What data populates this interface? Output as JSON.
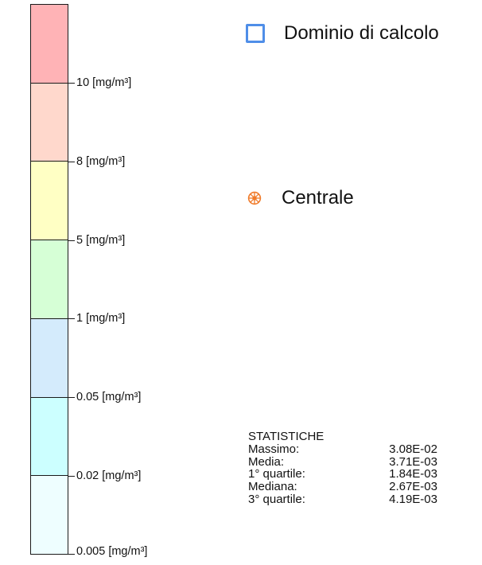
{
  "scale": {
    "colors": [
      "#ffb3b6",
      "#ffd8cc",
      "#ffffc4",
      "#d6ffd6",
      "#d4ebfc",
      "#ccffff",
      "#eefeff"
    ],
    "labels": [
      "10 [mg/m³]",
      "8 [mg/m³]",
      "5 [mg/m³]",
      "1 [mg/m³]",
      "0.05 [mg/m³]",
      "0.02 [mg/m³]",
      "0.005 [mg/m³]"
    ]
  },
  "legend": {
    "domain": {
      "label": "Dominio di calcolo",
      "icon": "square-outline-icon",
      "color": "#4f8ee8"
    },
    "centrale": {
      "label": "Centrale",
      "icon": "plant-wheel-icon",
      "color": "#f07b2a"
    }
  },
  "stats": {
    "title": "STATISTICHE",
    "rows": [
      {
        "label": "Massimo:",
        "value": "3.08E-02"
      },
      {
        "label": "Media:",
        "value": "3.71E-03"
      },
      {
        "label": "1° quartile:",
        "value": "1.84E-03"
      },
      {
        "label": "Mediana:",
        "value": "2.67E-03"
      },
      {
        "label": "3° quartile:",
        "value": "4.19E-03"
      }
    ]
  }
}
